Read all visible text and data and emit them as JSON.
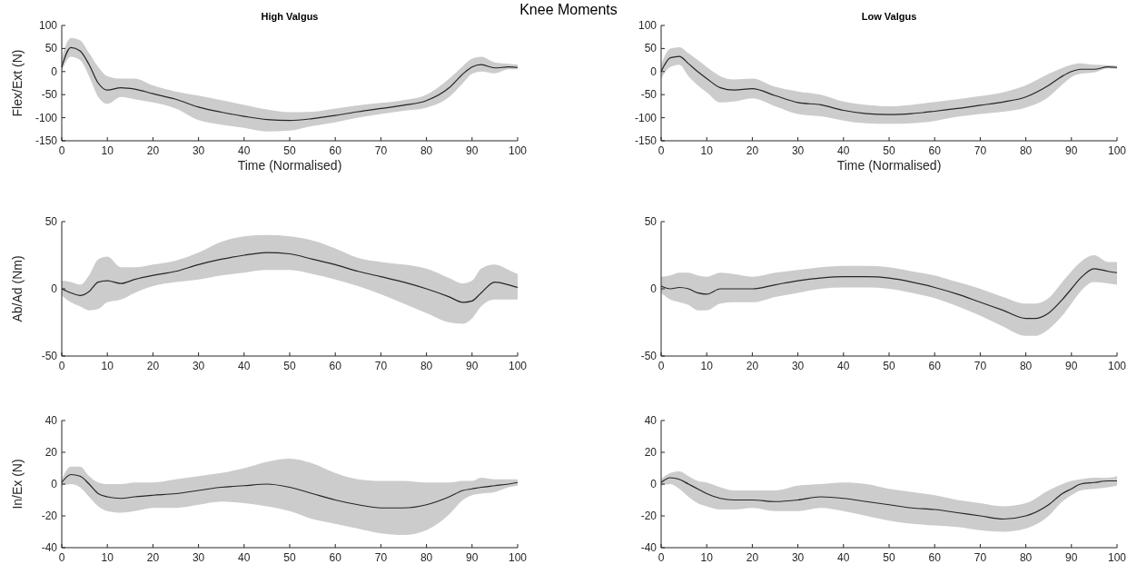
{
  "chart_data": [
    {
      "type": "line",
      "title": "High Valgus",
      "annotations": [
        "Knee Moments"
      ],
      "xlabel": "Time (Normalised)",
      "ylabel": "Flex/Ext (N)",
      "xlim": [
        0,
        100
      ],
      "xticks": [
        0,
        10,
        20,
        30,
        40,
        50,
        60,
        70,
        80,
        90,
        100
      ],
      "ylim": [
        -150,
        100
      ],
      "yticks": [
        -150,
        -100,
        -50,
        0,
        50,
        100
      ],
      "x": [
        0,
        2,
        4,
        6,
        8,
        10,
        13,
        16,
        20,
        25,
        30,
        35,
        40,
        45,
        50,
        55,
        60,
        65,
        70,
        75,
        80,
        85,
        88,
        90,
        92,
        95,
        98,
        100
      ],
      "series": [
        {
          "color": "#262626",
          "values": [
            10,
            52,
            45,
            15,
            -25,
            -40,
            -35,
            -38,
            -48,
            -60,
            -77,
            -88,
            -97,
            -104,
            -106,
            -102,
            -95,
            -87,
            -80,
            -73,
            -63,
            -35,
            -5,
            10,
            15,
            8,
            10,
            9
          ],
          "lower": [
            0,
            32,
            25,
            -10,
            -55,
            -70,
            -55,
            -60,
            -67,
            -80,
            -105,
            -115,
            -122,
            -130,
            -128,
            -118,
            -110,
            -100,
            -92,
            -85,
            -78,
            -55,
            -25,
            -5,
            0,
            -4,
            5,
            5
          ],
          "upper": [
            30,
            73,
            68,
            40,
            10,
            -10,
            -15,
            -15,
            -30,
            -43,
            -52,
            -62,
            -72,
            -82,
            -88,
            -87,
            -80,
            -73,
            -68,
            -62,
            -50,
            -15,
            12,
            28,
            32,
            20,
            17,
            15
          ]
        }
      ]
    },
    {
      "type": "line",
      "title": "Low Valgus",
      "xlabel": "Time (Normalised)",
      "xlim": [
        0,
        100
      ],
      "xticks": [
        0,
        10,
        20,
        30,
        40,
        50,
        60,
        70,
        80,
        90,
        100
      ],
      "ylim": [
        -150,
        100
      ],
      "yticks": [
        -150,
        -100,
        -50,
        0,
        50,
        100
      ],
      "x": [
        0,
        2,
        4,
        6,
        8,
        10,
        13,
        16,
        20,
        25,
        30,
        35,
        40,
        45,
        50,
        55,
        60,
        65,
        70,
        75,
        80,
        85,
        88,
        90,
        92,
        95,
        98,
        100
      ],
      "series": [
        {
          "color": "#262626",
          "values": [
            0,
            30,
            33,
            17,
            0,
            -15,
            -35,
            -40,
            -37,
            -52,
            -67,
            -72,
            -84,
            -91,
            -93,
            -91,
            -86,
            -80,
            -73,
            -66,
            -55,
            -30,
            -10,
            0,
            5,
            5,
            10,
            9
          ],
          "lower": [
            -15,
            10,
            15,
            -10,
            -30,
            -45,
            -67,
            -65,
            -58,
            -75,
            -92,
            -97,
            -106,
            -112,
            -113,
            -112,
            -107,
            -98,
            -92,
            -87,
            -78,
            -55,
            -28,
            -12,
            -5,
            -2,
            7,
            6
          ],
          "upper": [
            15,
            50,
            53,
            40,
            25,
            10,
            -10,
            -17,
            -15,
            -33,
            -43,
            -50,
            -65,
            -72,
            -75,
            -72,
            -66,
            -60,
            -53,
            -45,
            -30,
            -5,
            8,
            15,
            18,
            15,
            14,
            13
          ]
        }
      ]
    },
    {
      "type": "line",
      "ylabel": "Ab/Ad (Nm)",
      "xlim": [
        0,
        100
      ],
      "xticks": [
        0,
        10,
        20,
        30,
        40,
        50,
        60,
        70,
        80,
        90,
        100
      ],
      "ylim": [
        -50,
        50
      ],
      "yticks": [
        -50,
        0,
        50
      ],
      "x": [
        0,
        2,
        4,
        6,
        8,
        10,
        13,
        16,
        20,
        25,
        30,
        35,
        40,
        45,
        50,
        55,
        60,
        65,
        70,
        75,
        80,
        85,
        88,
        90,
        92,
        95,
        98,
        100
      ],
      "series": [
        {
          "color": "#262626",
          "values": [
            0,
            -3,
            -5,
            -2,
            5,
            6,
            4,
            7,
            10,
            13,
            18,
            22,
            25,
            27,
            26,
            22,
            18,
            13,
            9,
            5,
            0,
            -6,
            -10,
            -9,
            -3,
            5,
            3,
            1
          ],
          "lower": [
            -5,
            -10,
            -13,
            -16,
            -15,
            -10,
            -8,
            -3,
            2,
            5,
            7,
            10,
            12,
            14,
            14,
            11,
            7,
            2,
            -4,
            -11,
            -18,
            -25,
            -26,
            -22,
            -13,
            -8,
            -8,
            -8
          ],
          "upper": [
            6,
            5,
            3,
            10,
            22,
            24,
            16,
            16,
            18,
            21,
            27,
            35,
            39,
            40,
            39,
            36,
            30,
            23,
            20,
            18,
            15,
            8,
            4,
            6,
            15,
            18,
            14,
            11
          ]
        }
      ]
    },
    {
      "type": "line",
      "xlim": [
        0,
        100
      ],
      "xticks": [
        0,
        10,
        20,
        30,
        40,
        50,
        60,
        70,
        80,
        90,
        100
      ],
      "ylim": [
        -50,
        50
      ],
      "yticks": [
        -50,
        0,
        50
      ],
      "x": [
        0,
        2,
        4,
        6,
        8,
        10,
        13,
        16,
        20,
        25,
        30,
        35,
        40,
        45,
        50,
        55,
        60,
        65,
        70,
        75,
        80,
        82,
        85,
        88,
        90,
        92,
        95,
        98,
        100
      ],
      "series": [
        {
          "color": "#262626",
          "values": [
            2,
            0,
            1,
            0,
            -3,
            -4,
            0,
            0,
            0,
            3,
            6,
            8,
            9,
            9,
            8,
            5,
            1,
            -4,
            -10,
            -16,
            -22,
            -22,
            -18,
            -8,
            0,
            8,
            15,
            13,
            12
          ],
          "lower": [
            -3,
            -8,
            -10,
            -12,
            -16,
            -16,
            -11,
            -10,
            -10,
            -6,
            -3,
            0,
            1,
            1,
            0,
            -3,
            -7,
            -13,
            -20,
            -28,
            -35,
            -35,
            -30,
            -20,
            -11,
            -2,
            5,
            4,
            3
          ],
          "upper": [
            9,
            10,
            12,
            12,
            10,
            9,
            12,
            11,
            9,
            12,
            14,
            16,
            17,
            17,
            16,
            13,
            10,
            5,
            0,
            -6,
            -11,
            -11,
            -7,
            5,
            13,
            20,
            25,
            20,
            20
          ]
        }
      ]
    },
    {
      "type": "line",
      "ylabel": "In/Ex (N)",
      "xlim": [
        0,
        100
      ],
      "xticks": [
        0,
        10,
        20,
        30,
        40,
        50,
        60,
        70,
        80,
        90,
        100
      ],
      "ylim": [
        -40,
        40
      ],
      "yticks": [
        -40,
        -20,
        0,
        20,
        40
      ],
      "x": [
        0,
        2,
        4,
        6,
        8,
        10,
        13,
        16,
        20,
        25,
        30,
        35,
        40,
        45,
        50,
        55,
        60,
        65,
        70,
        75,
        80,
        85,
        88,
        90,
        92,
        95,
        98,
        100
      ],
      "series": [
        {
          "color": "#262626",
          "values": [
            1,
            6,
            5,
            0,
            -6,
            -8,
            -9,
            -8,
            -7,
            -6,
            -4,
            -2,
            -1,
            0,
            -2,
            -6,
            -10,
            -13,
            -15,
            -15,
            -13,
            -8,
            -4,
            -3,
            -2,
            -1,
            0,
            1
          ],
          "lower": [
            -1,
            0,
            -2,
            -8,
            -14,
            -17,
            -18,
            -17,
            -15,
            -15,
            -13,
            -11,
            -12,
            -14,
            -17,
            -22,
            -25,
            -28,
            -31,
            -32,
            -29,
            -19,
            -10,
            -7,
            -6,
            -5,
            -2,
            -1
          ],
          "upper": [
            3,
            11,
            11,
            5,
            1,
            0,
            0,
            1,
            1,
            3,
            5,
            7,
            10,
            14,
            16,
            13,
            7,
            3,
            2,
            2,
            1,
            1,
            2,
            2,
            4,
            3,
            3,
            3
          ]
        }
      ]
    },
    {
      "type": "line",
      "xlim": [
        0,
        100
      ],
      "xticks": [
        0,
        10,
        20,
        30,
        40,
        50,
        60,
        70,
        80,
        90,
        100
      ],
      "ylim": [
        -40,
        40
      ],
      "yticks": [
        -40,
        -20,
        0,
        20,
        40
      ],
      "x": [
        0,
        2,
        4,
        6,
        8,
        10,
        13,
        16,
        20,
        25,
        30,
        35,
        40,
        45,
        50,
        55,
        60,
        65,
        70,
        75,
        80,
        85,
        88,
        90,
        92,
        95,
        98,
        100
      ],
      "series": [
        {
          "color": "#262626",
          "values": [
            1,
            4,
            3,
            0,
            -3,
            -6,
            -9,
            -10,
            -10,
            -11,
            -10,
            -8,
            -9,
            -11,
            -13,
            -15,
            -16,
            -18,
            -20,
            -22,
            -20,
            -13,
            -6,
            -3,
            0,
            1,
            2,
            2
          ],
          "lower": [
            -1,
            0,
            -3,
            -8,
            -12,
            -14,
            -16,
            -16,
            -15,
            -17,
            -17,
            -15,
            -17,
            -20,
            -23,
            -25,
            -26,
            -27,
            -29,
            -30,
            -28,
            -20,
            -11,
            -7,
            -4,
            -3,
            -2,
            -1
          ],
          "upper": [
            3,
            7,
            8,
            5,
            2,
            1,
            -2,
            -4,
            -4,
            -4,
            -1,
            0,
            1,
            0,
            -3,
            -5,
            -7,
            -10,
            -12,
            -14,
            -12,
            -4,
            0,
            2,
            3,
            4,
            4,
            5
          ]
        }
      ]
    }
  ]
}
